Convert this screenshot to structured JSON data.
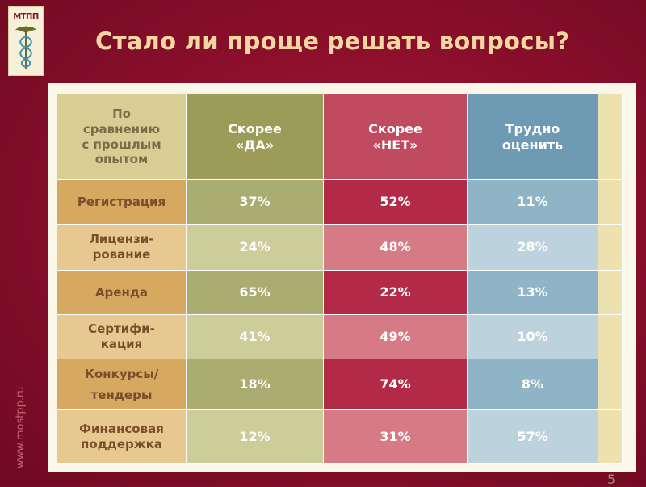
{
  "logo": {
    "text": "МТПП"
  },
  "title": "Стало ли проще решать вопросы?",
  "side_url": "www.mostpp.ru",
  "page_number": "5",
  "table": {
    "corner_header": [
      "По",
      "сравнению",
      "с прошлым",
      "опытом"
    ],
    "columns": [
      {
        "key": "yes",
        "label": [
          "Скорее",
          "«ДА»"
        ],
        "color": "#9c9c58"
      },
      {
        "key": "no",
        "label": [
          "Скорее",
          "«НЕТ»"
        ],
        "color": "#c04a60"
      },
      {
        "key": "hard",
        "label": [
          "Трудно",
          "оценить"
        ],
        "color": "#6e9ab4"
      }
    ],
    "rows": [
      {
        "label": [
          "Регистрация"
        ],
        "yes": "37%",
        "no": "52%",
        "hard": "11%"
      },
      {
        "label": [
          "Лицензи-",
          "рование"
        ],
        "yes": "24%",
        "no": "48%",
        "hard": "28%"
      },
      {
        "label": [
          "Аренда"
        ],
        "yes": "65%",
        "no": "22%",
        "hard": "13%"
      },
      {
        "label": [
          "Сертифи-",
          "кация"
        ],
        "yes": "41%",
        "no": "49%",
        "hard": "10%"
      },
      {
        "label": [
          "Конкурсы/",
          "тендеры"
        ],
        "yes": "18%",
        "no": "74%",
        "hard": "8%"
      },
      {
        "label": [
          "Финансовая",
          "поддержка"
        ],
        "yes": "12%",
        "no": "31%",
        "hard": "57%"
      }
    ]
  }
}
